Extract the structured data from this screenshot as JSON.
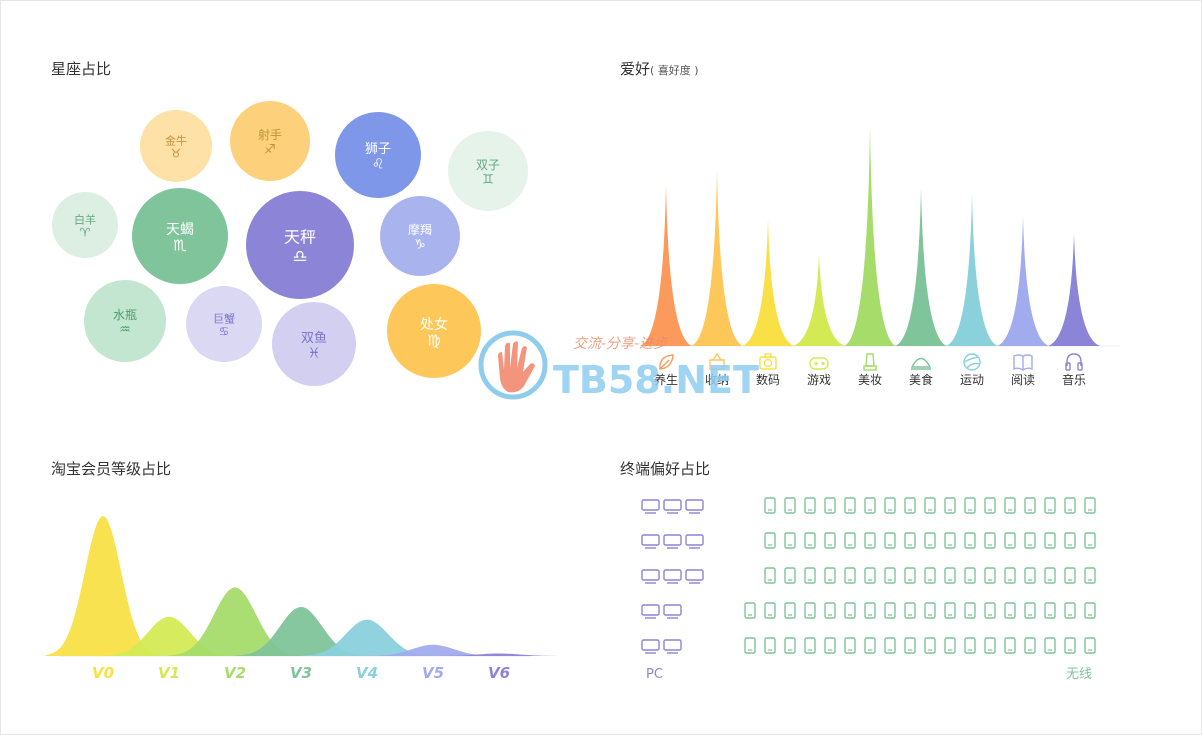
{
  "titles": {
    "constellation": "星座占比",
    "hobby": "爱好",
    "hobby_sub": "( 喜好度 )",
    "member": "淘宝会员等级占比",
    "terminal": "终端偏好占比"
  },
  "watermark": {
    "brand": "TB58.NET",
    "slogan": "交流-分享-进步"
  },
  "chart_data": [
    {
      "id": "constellation",
      "type": "bubble",
      "title": "星座占比",
      "items": [
        {
          "name": "金牛",
          "symbol": "♉",
          "share": 0.45,
          "color": "#fde1a6",
          "text_color": "#c7913b"
        },
        {
          "name": "射手",
          "symbol": "♐",
          "share": 0.55,
          "color": "#fdd17c",
          "text_color": "#c7913b"
        },
        {
          "name": "狮子",
          "symbol": "♌",
          "share": 0.62,
          "color": "#7f97e8",
          "text_color": "#ffffff"
        },
        {
          "name": "双子",
          "symbol": "♊",
          "share": 0.55,
          "color": "#e5f3ea",
          "text_color": "#64a97e"
        },
        {
          "name": "白羊",
          "symbol": "♈",
          "share": 0.38,
          "color": "#ddeee3",
          "text_color": "#64a97e"
        },
        {
          "name": "天蝎",
          "symbol": "♏",
          "share": 0.78,
          "color": "#7fc49a",
          "text_color": "#ffffff"
        },
        {
          "name": "天秤",
          "symbol": "♎",
          "share": 1.0,
          "color": "#8b84d7",
          "text_color": "#ffffff"
        },
        {
          "name": "摩羯",
          "symbol": "♑",
          "share": 0.55,
          "color": "#a9b4ef",
          "text_color": "#ffffff"
        },
        {
          "name": "水瓶",
          "symbol": "♒",
          "share": 0.58,
          "color": "#c3e6d1",
          "text_color": "#4e9a6a"
        },
        {
          "name": "巨蟹",
          "symbol": "♋",
          "share": 0.5,
          "color": "#dad8f3",
          "text_color": "#7d76c9"
        },
        {
          "name": "双鱼",
          "symbol": "♓",
          "share": 0.6,
          "color": "#d3cff1",
          "text_color": "#7d76c9"
        },
        {
          "name": "处女",
          "symbol": "♍",
          "share": 0.75,
          "color": "#fdc75a",
          "text_color": "#ffffff"
        }
      ]
    },
    {
      "id": "hobby",
      "type": "spike",
      "title": "爱好",
      "categories": [
        "养生",
        "收纳",
        "数码",
        "游戏",
        "美妆",
        "美食",
        "运动",
        "阅读",
        "音乐"
      ],
      "icons": [
        "leaf-icon",
        "box-icon",
        "camera-icon",
        "gamepad-icon",
        "cosmetics-icon",
        "dish-icon",
        "ball-icon",
        "book-icon",
        "headphones-icon"
      ],
      "values": [
        73,
        80,
        58,
        42,
        100,
        72,
        69,
        59,
        51
      ],
      "colors": [
        "#fb9a5b",
        "#fdc75a",
        "#f8e046",
        "#d4ea55",
        "#a6dc6a",
        "#7fc49a",
        "#8ad1dc",
        "#a1acee",
        "#8b84d7"
      ],
      "ylim": [
        0,
        100
      ]
    },
    {
      "id": "member",
      "type": "area",
      "title": "淘宝会员等级占比",
      "categories": [
        "V0",
        "V1",
        "V2",
        "V3",
        "V4",
        "V5",
        "V6"
      ],
      "values": [
        100,
        28,
        49,
        35,
        26,
        8,
        1
      ],
      "colors": [
        "#f8e046",
        "#d4ea55",
        "#a6dc6a",
        "#7fc49a",
        "#8ad1dc",
        "#a1acee",
        "#8b84d7"
      ],
      "ylim": [
        0,
        100
      ]
    },
    {
      "id": "terminal",
      "type": "pictogram",
      "title": "终端偏好占比",
      "series": [
        {
          "name": "PC",
          "icon": "monitor-icon",
          "color": "#8b84d7",
          "rows": [
            3,
            3,
            3,
            2,
            2
          ]
        },
        {
          "name": "无线",
          "icon": "phone-icon",
          "color": "#7fc49a",
          "rows": [
            17,
            17,
            17,
            18,
            18
          ]
        }
      ]
    }
  ]
}
